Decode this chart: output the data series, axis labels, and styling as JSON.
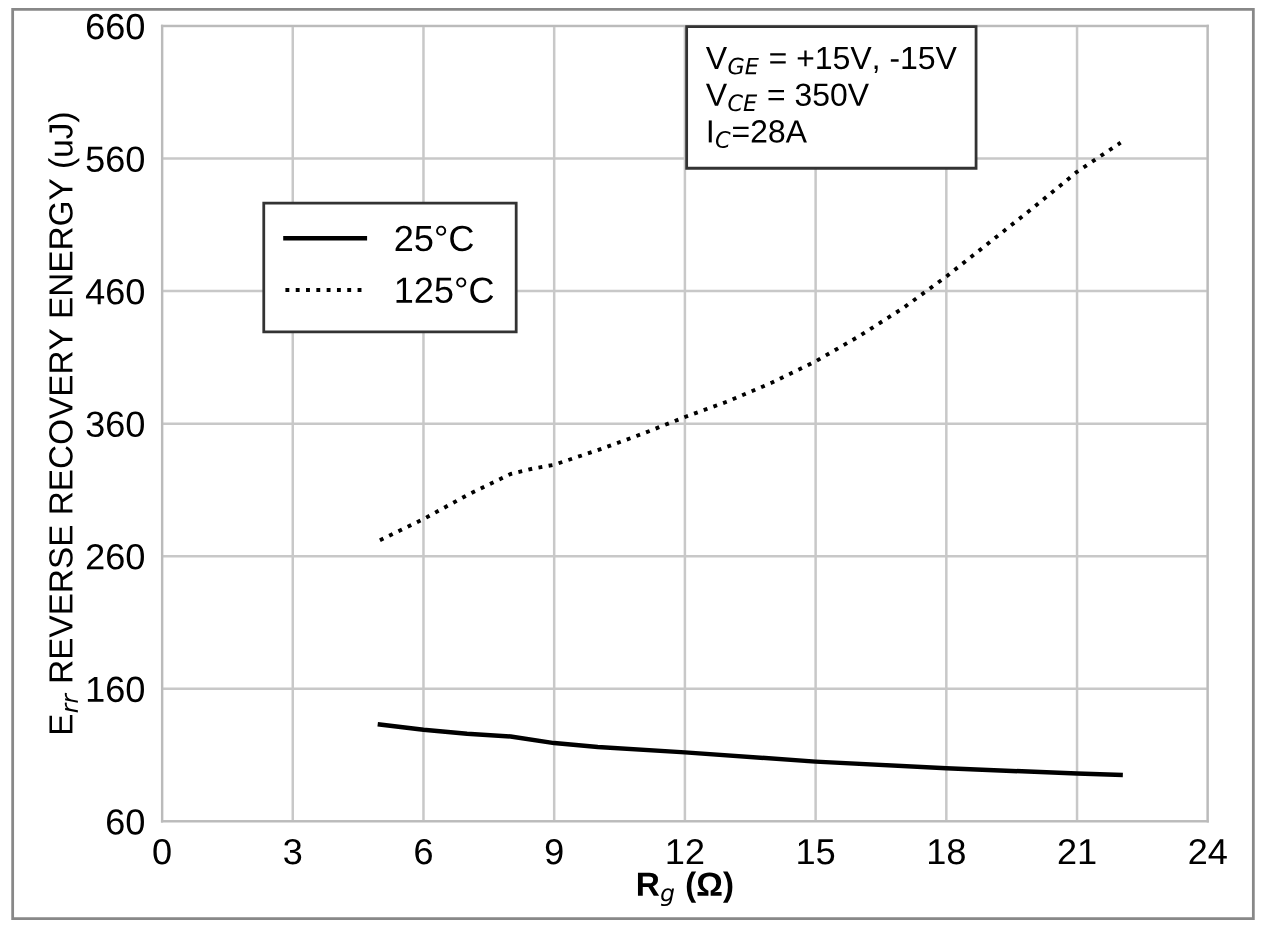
{
  "chart_data": {
    "type": "line",
    "xlabel": "R$_{g}$ (Ω)",
    "ylabel": "E$_{rr}$ REVERSE RECOVERY ENERGY (uJ)",
    "xlim": [
      0,
      24
    ],
    "xticks": [
      0,
      3,
      6,
      9,
      12,
      15,
      18,
      21,
      24
    ],
    "ylim": [
      60,
      660
    ],
    "yticks": [
      60,
      160,
      260,
      360,
      460,
      560,
      660
    ],
    "grid": true,
    "legend": "top left",
    "annotations": [
      "V$_{GE}$ = +15V, -15V\nV$_{CE}$ = 350V\nI$_{C}$=28A"
    ],
    "series": [
      {
        "name": "25°C",
        "color": "#000000",
        "line_style": "solid",
        "x": [
          5,
          6,
          7,
          8,
          9,
          10,
          12,
          15,
          18,
          21,
          22
        ],
        "values": [
          133,
          129,
          126,
          124,
          119,
          116,
          112,
          105,
          100,
          96,
          95
        ]
      },
      {
        "name": "125°C",
        "color": "#000000",
        "line_style": "dotted",
        "x": [
          5,
          6,
          7,
          8,
          8.5,
          9,
          10,
          11,
          12,
          13,
          14,
          15,
          16,
          17,
          18,
          19,
          20,
          21,
          22
        ],
        "values": [
          272,
          288,
          306,
          322,
          326,
          329,
          340,
          352,
          365,
          377,
          391,
          407,
          426,
          447,
          471,
          497,
          523,
          550,
          572
        ]
      }
    ]
  }
}
